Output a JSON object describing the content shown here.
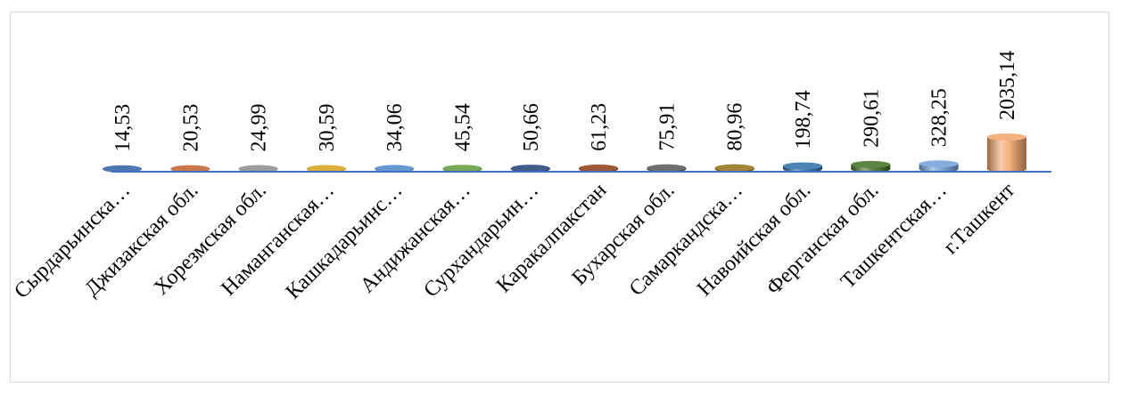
{
  "chart_data": {
    "type": "bar",
    "categories": [
      "Сырдарьинска…",
      "Джизакская обл.",
      "Хорезмская обл.",
      "Наманганская…",
      "Кашкадарьинс…",
      "Андижанская…",
      "Сурхандарьин…",
      "Каракалпакстан",
      "Бухарская обл.",
      "Самаркандска…",
      "Навоийская обл.",
      "Ферганская обл.",
      "Ташкентская…",
      "г.Ташкент"
    ],
    "values": [
      14.53,
      20.53,
      24.99,
      30.59,
      34.06,
      45.54,
      50.66,
      61.23,
      75.91,
      80.96,
      198.74,
      290.61,
      328.25,
      2035.14
    ],
    "data_labels": [
      "14,53",
      "20,53",
      "24,99",
      "30,59",
      "34,06",
      "45,54",
      "50,66",
      "61,23",
      "75,91",
      "80,96",
      "198,74",
      "290,61",
      "328,25",
      "2035,14"
    ],
    "colors": [
      "#2e5fa3",
      "#c0602a",
      "#8c8c8c",
      "#d4a017",
      "#4a86c8",
      "#5e9a3a",
      "#1f3f73",
      "#8a3d16",
      "#555555",
      "#8f6f10",
      "#2a6fa8",
      "#3f6e22",
      "#6f9fd8",
      "#f2a46a"
    ],
    "axis_color": "#4472c4",
    "title": "",
    "xlabel": "",
    "ylabel": "",
    "ylim": [
      0,
      2035.14
    ],
    "grid": false,
    "legend": "none"
  }
}
